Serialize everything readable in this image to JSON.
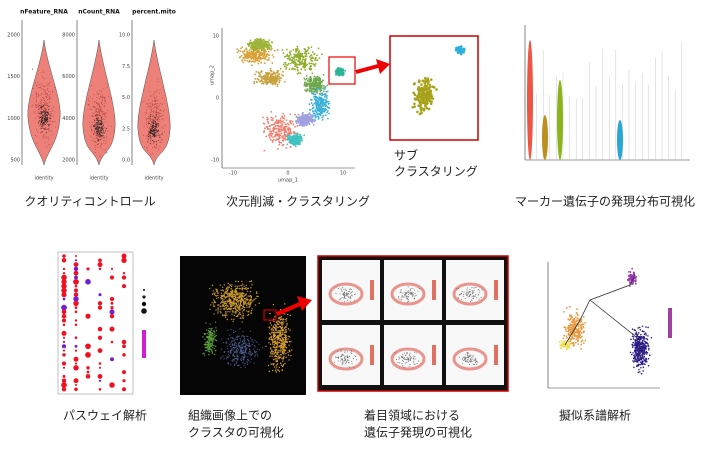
{
  "panels": {
    "qc": {
      "titles": [
        "nFeature_RNA",
        "nCount_RNA",
        "percent.mito"
      ],
      "ticks": [
        [
          "2000",
          "1500",
          "1000",
          "500"
        ],
        [
          "8000",
          "6000",
          "4000",
          "2000"
        ],
        [
          "10.0",
          "7.5",
          "5.0",
          "2.5",
          "0.0"
        ]
      ],
      "xlabel": "identity",
      "caption": "クオリティコントロール"
    },
    "umap": {
      "yticks": [
        "10",
        "0",
        "-10"
      ],
      "xticks": [
        "-10",
        "0",
        "10"
      ],
      "xlabel": "umap_1",
      "ylabel": "umap_2",
      "caption": "次元削減・クラスタリング",
      "subcluster": [
        "サブ",
        "クラスタリング"
      ]
    },
    "marker": {
      "caption": "マーカー遺伝子の発現分布可視化"
    },
    "pathway": {
      "caption": "パスウェイ解析"
    },
    "tissue": {
      "caption": [
        "組織画像上での",
        "クラスタの可視化"
      ]
    },
    "spatial": {
      "caption": [
        "着目領域における",
        "遺伝子発現の可視化"
      ]
    },
    "pseudotime": {
      "caption": "擬似系譜解析"
    }
  }
}
